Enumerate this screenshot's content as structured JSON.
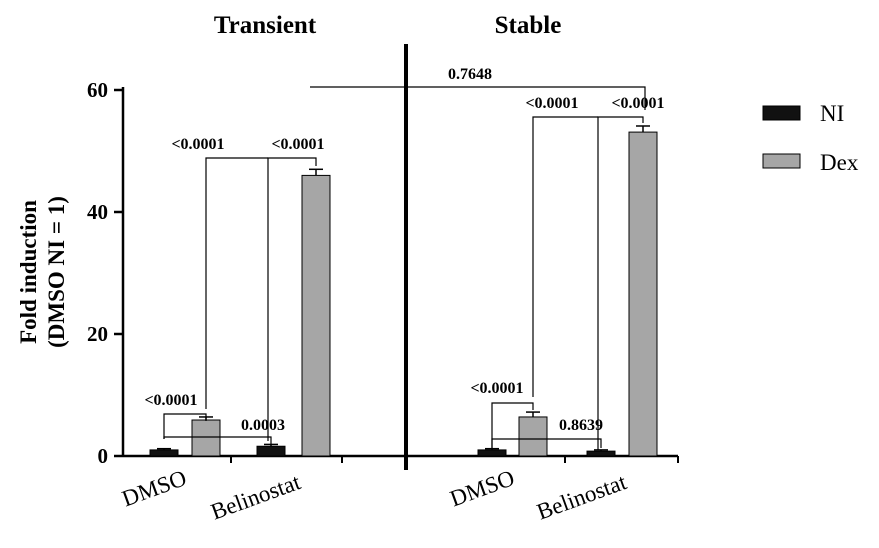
{
  "chart_data": {
    "type": "bar",
    "ylabel_line1": "Fold induction",
    "ylabel_line2": "(DMSO NI = 1)",
    "ylim": [
      0,
      60
    ],
    "yticks": [
      0,
      20,
      40,
      60
    ],
    "grid": false,
    "legend_position": "right",
    "series": [
      {
        "name": "NI",
        "color": "#111111"
      },
      {
        "name": "Dex",
        "color": "#a6a6a6"
      }
    ],
    "panels": [
      {
        "title": "Transient",
        "categories": [
          "DMSO",
          "Belinostat"
        ],
        "values": {
          "NI": [
            1.0,
            1.6
          ],
          "Dex": [
            5.9,
            46.0
          ]
        },
        "errors": {
          "NI": [
            0.2,
            0.3
          ],
          "Dex": [
            0.5,
            1.0
          ]
        }
      },
      {
        "title": "Stable",
        "categories": [
          "DMSO",
          "Belinostat"
        ],
        "values": {
          "NI": [
            1.0,
            0.8
          ],
          "Dex": [
            6.4,
            53.1
          ]
        },
        "errors": {
          "NI": [
            0.2,
            0.2
          ],
          "Dex": [
            0.8,
            1.0
          ]
        }
      }
    ],
    "annotations": {
      "transient_dmso_ni_vs_dex": "<0.0001",
      "transient_ni_dmso_vs_belinostat": "0.0003",
      "transient_dex_dmso_vs_belinostat": "<0.0001",
      "transient_dex_vs_ni_belinostat": "<0.0001",
      "stable_dmso_ni_vs_dex": "<0.0001",
      "stable_ni_dmso_vs_belinostat": "0.8639",
      "stable_dex_dmso_vs_belinostat": "<0.0001",
      "stable_dex_vs_ni_belinostat": "<0.0001",
      "transient_vs_stable_dex_belinostat": "0.7648"
    }
  }
}
